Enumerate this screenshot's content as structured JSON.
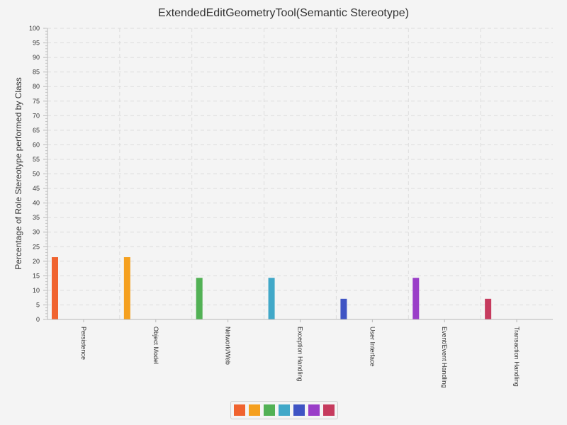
{
  "chart_data": {
    "type": "bar",
    "title": "ExtendedEditGeometryTool(Semantic Stereotype)",
    "xlabel": "",
    "ylabel": "Percentage of Role Stereotype performed by Class",
    "ylim": [
      0,
      100
    ],
    "ytick_step": 5,
    "grid": true,
    "legend": "bottom",
    "categories": [
      "Persistence",
      "Object Model",
      "Network/Web",
      "Exception Handling",
      "User Interface",
      "Event/Event Handling",
      "Transaction Handling"
    ],
    "values": [
      21.4,
      21.4,
      14.3,
      14.3,
      7.1,
      14.3,
      7.1
    ],
    "colors": [
      "#f0632f",
      "#f5a01f",
      "#52b155",
      "#41a8c8",
      "#3f54c4",
      "#9a3ec8",
      "#c63b5e"
    ]
  }
}
